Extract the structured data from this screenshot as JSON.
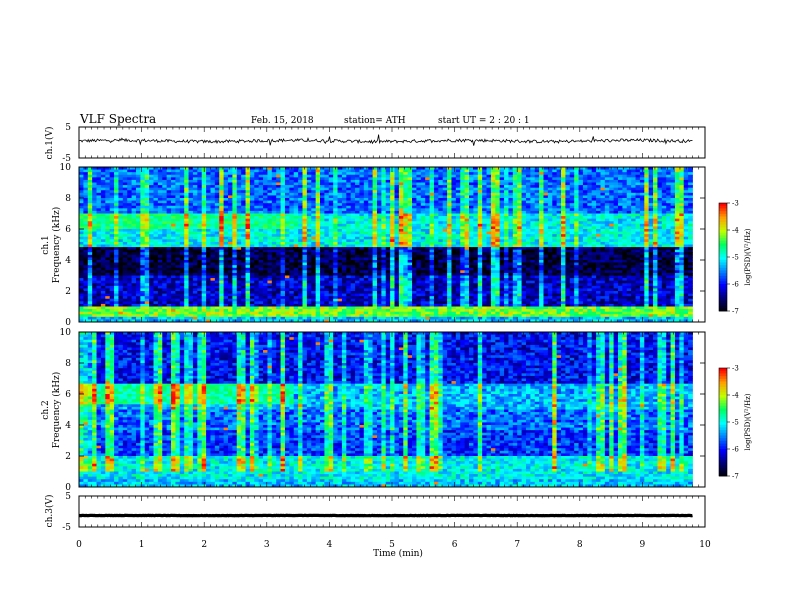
{
  "header": {
    "title": "VLF  Spectra",
    "date": "Feb. 15, 2018",
    "station": "station= ATH",
    "start": "start  UT  =   2  : 20 : 1"
  },
  "colors": {
    "colormap": [
      "#000000",
      "#000070",
      "#0000ff",
      "#0080ff",
      "#00ffff",
      "#00ff60",
      "#c0ff00",
      "#ffa000",
      "#ff0000",
      "#ffffff"
    ],
    "trace": "#000000"
  },
  "chart_data": [
    {
      "type": "line",
      "name": "ch1-waveform",
      "ylabel": "ch.1(V)",
      "ylim": [
        -5,
        5
      ],
      "yticks": [
        "5",
        "-5"
      ],
      "xlim": [
        0,
        10
      ],
      "baseline": 0.5,
      "noise": 0.5,
      "x_end": 9.8
    },
    {
      "type": "heatmap",
      "name": "ch1-spectrogram",
      "ylabel": [
        "ch.1",
        "Frequency  (kHz)"
      ],
      "ylim": [
        0,
        10
      ],
      "yticks": [
        "0",
        "2",
        "4",
        "6",
        "8",
        "10"
      ],
      "xlim": [
        0,
        10
      ],
      "x_end": 9.8,
      "colorbar": {
        "label": "log(PSD)(V²/Hz)",
        "range": [
          -7,
          -3
        ],
        "ticks": [
          "-3",
          "-4",
          "-5",
          "-6",
          "-7"
        ]
      },
      "bands": [
        {
          "from": 0,
          "to": 0.4,
          "level": -5.2
        },
        {
          "from": 0.4,
          "to": 1.0,
          "level": -4.2
        },
        {
          "from": 1.0,
          "to": 3.0,
          "level": -6.2
        },
        {
          "from": 3.0,
          "to": 4.8,
          "level": -6.7
        },
        {
          "from": 4.8,
          "to": 7.0,
          "level": -5.0
        },
        {
          "from": 7.0,
          "to": 10,
          "level": -5.6
        }
      ],
      "enhanced_region": {
        "x": [
          0,
          3.5
        ],
        "f": [
          6.0,
          7.0
        ],
        "level": -4.6
      }
    },
    {
      "type": "heatmap",
      "name": "ch2-spectrogram",
      "ylabel": [
        "ch.2",
        "Frequency  (kHz)"
      ],
      "ylim": [
        0,
        10
      ],
      "yticks": [
        "0",
        "2",
        "4",
        "6",
        "8",
        "10"
      ],
      "xlim": [
        0,
        10
      ],
      "x_end": 9.8,
      "colorbar": {
        "label": "log(PSD)(V²/Hz)",
        "range": [
          -7,
          -3
        ],
        "ticks": [
          "-3",
          "-4",
          "-5",
          "-6",
          "-7"
        ]
      },
      "bands": [
        {
          "from": 0,
          "to": 0.5,
          "level": -5.2
        },
        {
          "from": 0.5,
          "to": 2.0,
          "level": -5.0
        },
        {
          "from": 2.0,
          "to": 3.6,
          "level": -5.8
        },
        {
          "from": 3.6,
          "to": 5.0,
          "level": -5.6
        },
        {
          "from": 5.0,
          "to": 6.6,
          "level": -5.3
        },
        {
          "from": 6.6,
          "to": 10,
          "level": -6.0
        }
      ],
      "enhanced_region": {
        "x": [
          0,
          3.4
        ],
        "f": [
          5.4,
          6.6
        ],
        "level": -4.7
      }
    },
    {
      "type": "line",
      "name": "ch3-waveform",
      "ylabel": "ch.3(V)",
      "ylim": [
        -5,
        5
      ],
      "yticks": [
        "5",
        "-5"
      ],
      "xlim": [
        0,
        10
      ],
      "baseline": -1.3,
      "noise": 0.05,
      "x_end": 9.8
    }
  ],
  "xaxis": {
    "label": "Time  (min)",
    "ticks": [
      "0",
      "1",
      "2",
      "3",
      "4",
      "5",
      "6",
      "7",
      "8",
      "9",
      "10"
    ]
  }
}
